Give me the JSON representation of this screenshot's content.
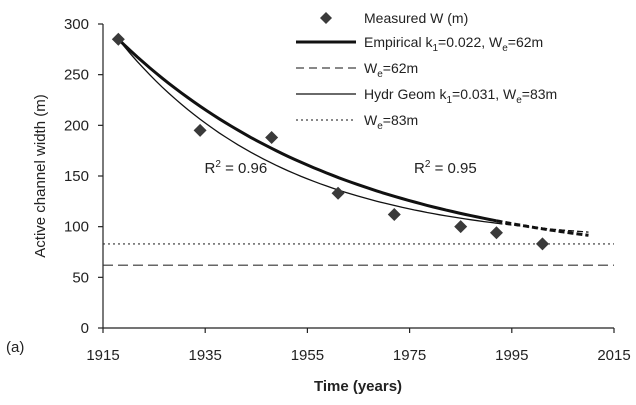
{
  "chart_data": {
    "type": "line",
    "panel_label": "(a)",
    "xlabel": "Time (years)",
    "ylabel": "Active channel width (m)",
    "xlim": [
      1915,
      2015
    ],
    "ylim": [
      0,
      300
    ],
    "xticks": [
      1915,
      1935,
      1955,
      1975,
      1995,
      2015
    ],
    "yticks": [
      0,
      50,
      100,
      150,
      200,
      250,
      300
    ],
    "grid": false,
    "legend_placement": "top-right",
    "colors": {
      "marker": "#3a3a3a",
      "line": "#111111"
    },
    "measured": {
      "name": "Measured W (m)",
      "x": [
        1918,
        1934,
        1948,
        1961,
        1972,
        1985,
        1992,
        2001
      ],
      "y": [
        285,
        195,
        188,
        133,
        112,
        100,
        94,
        83
      ]
    },
    "series": [
      {
        "name": "Empirical k1=0.022, We=62m",
        "name_parts": {
          "pre": "Empirical k",
          "sub1": "1",
          "mid": "=0.022, W",
          "sub2": "e",
          "post": "=62m"
        },
        "style": "thick-solid",
        "k": 0.022,
        "We": 62,
        "W0": 285,
        "x0": 1918,
        "x_end_solid": 1992,
        "x_end_dashed": 2010
      },
      {
        "name": "We=62m",
        "name_parts": {
          "pre": "W",
          "sub": "e",
          "post": "=62m"
        },
        "style": "dashed",
        "y": 62
      },
      {
        "name": "Hydr Geom k1=0.031, We=83m",
        "name_parts": {
          "pre": "Hydr Geom k",
          "sub1": "1",
          "mid": "=0.031, W",
          "sub2": "e",
          "post": "=83m"
        },
        "style": "thin-solid",
        "k": 0.031,
        "We": 83,
        "W0": 285,
        "x0": 1918,
        "x_end_solid": 1992,
        "x_end_dashed": 2010
      },
      {
        "name": "We=83m",
        "name_parts": {
          "pre": "W",
          "sub": "e",
          "post": "=83m"
        },
        "style": "dotted",
        "y": 83
      }
    ],
    "annotations": [
      {
        "text": "R2 = 0.96",
        "pre": "R",
        "sup": "2",
        "post": " = 0.96",
        "at_x": 1941,
        "at_y": 153
      },
      {
        "text": "R2 = 0.95",
        "pre": "R",
        "sup": "2",
        "post": " = 0.95",
        "at_x": 1982,
        "at_y": 153
      }
    ]
  }
}
